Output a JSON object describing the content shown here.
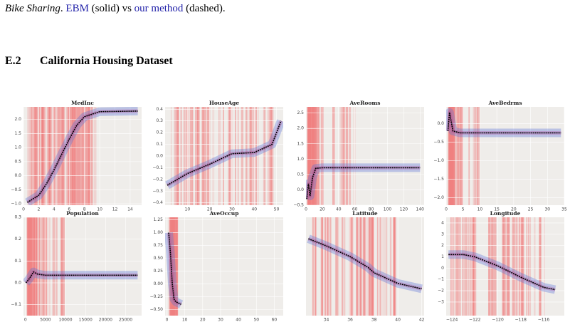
{
  "caption": {
    "dataset": "Bike Sharing",
    "sep": ".",
    "ebm": "EBM",
    "solid": "(solid) vs",
    "method": "our method",
    "dashed": "(dashed)."
  },
  "section": {
    "number": "E.2",
    "title": "California Housing Dataset"
  },
  "chart_data": [
    {
      "type": "line",
      "title": "MedInc",
      "xlim": [
        0,
        15.5
      ],
      "ylim": [
        -1.05,
        2.45
      ],
      "xticks": [
        0,
        2,
        4,
        6,
        8,
        10,
        12,
        14
      ],
      "yticks": [
        {
          "value": -1.0,
          "label": "−1.0"
        },
        {
          "value": -0.5,
          "label": "−0.5"
        },
        {
          "value": 0,
          "label": "0.0"
        },
        0.5,
        {
          "value": 1.0,
          "label": "1.0"
        },
        1.5,
        {
          "value": 2.0,
          "label": "2.0"
        }
      ],
      "x": [
        0.5,
        2,
        3,
        4,
        5,
        6,
        7,
        8,
        10,
        15
      ],
      "y": [
        -0.95,
        -0.7,
        -0.3,
        0.2,
        0.75,
        1.3,
        1.8,
        2.1,
        2.28,
        2.3
      ]
    },
    {
      "type": "line",
      "title": "HouseAge",
      "xlim": [
        0,
        53
      ],
      "ylim": [
        -0.42,
        0.42
      ],
      "xticks": [
        10,
        20,
        30,
        40,
        50
      ],
      "yticks": [
        {
          "value": -0.4,
          "label": "−0.4"
        },
        {
          "value": -0.3,
          "label": "−0.3"
        },
        {
          "value": -0.2,
          "label": "−0.2"
        },
        {
          "value": -0.1,
          "label": "−0.1"
        },
        {
          "value": 0,
          "label": "0.0"
        },
        0.1,
        0.2,
        0.3,
        0.4
      ],
      "x": [
        1,
        10,
        20,
        30,
        40,
        48,
        52
      ],
      "y": [
        -0.25,
        -0.15,
        -0.07,
        0.02,
        0.03,
        0.1,
        0.3
      ]
    },
    {
      "type": "line",
      "title": "AveRooms",
      "xlim": [
        0,
        145
      ],
      "ylim": [
        -0.5,
        2.7
      ],
      "xticks": [
        0,
        20,
        40,
        60,
        80,
        100,
        120,
        140
      ],
      "yticks": [
        {
          "value": -0.5,
          "label": "−0.5"
        },
        {
          "value": 0,
          "label": "0.0"
        },
        0.5,
        {
          "value": 1.0,
          "label": "1.0"
        },
        1.5,
        {
          "value": 2.0,
          "label": "2.0"
        },
        2.5
      ],
      "x": [
        1,
        3,
        5,
        8,
        12,
        20,
        60,
        140
      ],
      "y": [
        -0.3,
        0.2,
        -0.2,
        0.4,
        0.7,
        0.72,
        0.72,
        0.72
      ]
    },
    {
      "type": "line",
      "title": "AveBedrms",
      "xlim": [
        0,
        35
      ],
      "ylim": [
        -2.2,
        0.45
      ],
      "xticks": [
        0,
        5,
        10,
        15,
        20,
        25,
        30,
        35
      ],
      "yticks": [
        {
          "value": -2.0,
          "label": "−2.0"
        },
        {
          "value": -1.5,
          "label": "−1.5"
        },
        {
          "value": -1.0,
          "label": "−1.0"
        },
        {
          "value": -0.5,
          "label": "−0.5"
        },
        {
          "value": 0,
          "label": "0.0"
        }
      ],
      "x": [
        0.5,
        1,
        1.5,
        2,
        4,
        10,
        34
      ],
      "y": [
        -0.2,
        0.3,
        0.05,
        -0.2,
        -0.25,
        -0.25,
        -0.25
      ]
    },
    {
      "type": "line",
      "title": "Population",
      "xlim": [
        -500,
        29000
      ],
      "ylim": [
        -0.15,
        0.3
      ],
      "xticks": [
        0,
        5000,
        10000,
        15000,
        20000,
        25000
      ],
      "yticks": [
        {
          "value": -0.1,
          "label": "−0.1"
        },
        {
          "value": 0,
          "label": "0.0"
        },
        0.1,
        0.2,
        0.3
      ],
      "x": [
        100,
        1000,
        2000,
        3000,
        5000,
        10000,
        28000
      ],
      "y": [
        0,
        0.02,
        0.05,
        0.04,
        0.035,
        0.035,
        0.035
      ]
    },
    {
      "type": "line",
      "title": "AveOccup",
      "xlim": [
        -1,
        65
      ],
      "ylim": [
        -0.62,
        1.3
      ],
      "xticks": [
        0,
        10,
        20,
        30,
        40,
        50,
        60
      ],
      "yticks": [
        {
          "value": -0.5,
          "label": "−0.50"
        },
        {
          "value": -0.25,
          "label": "−0.25"
        },
        {
          "value": 0,
          "label": "0.00"
        },
        0.25,
        {
          "value": 0.5,
          "label": "0.50"
        },
        0.75,
        {
          "value": 1.0,
          "label": "1.00"
        },
        1.25
      ],
      "x": [
        1,
        2,
        3,
        4,
        5,
        8
      ],
      "y": [
        1.0,
        0.6,
        0.0,
        -0.3,
        -0.35,
        -0.4
      ]
    },
    {
      "type": "line",
      "title": "Latitude",
      "xlim": [
        32.3,
        42.2
      ],
      "ylim": [
        -3.3,
        2.2
      ],
      "xticks": [
        34,
        36,
        38,
        40,
        42
      ],
      "yticks": [],
      "x": [
        32.5,
        34,
        36,
        37.5,
        38,
        40,
        42
      ],
      "y": [
        1.0,
        0.6,
        0,
        -0.6,
        -0.9,
        -1.5,
        -1.8
      ]
    },
    {
      "type": "line",
      "title": "Longitude",
      "xlim": [
        -124.5,
        -114.2
      ],
      "ylim": [
        -4.2,
        4.5
      ],
      "xticks": [
        {
          "value": -124,
          "label": "−124"
        },
        {
          "value": -122,
          "label": "−122"
        },
        {
          "value": -120,
          "label": "−120"
        },
        {
          "value": -118,
          "label": "−118"
        },
        {
          "value": -116,
          "label": "−116"
        }
      ],
      "yticks": [
        {
          "value": -3,
          "label": "−3"
        },
        {
          "value": -2,
          "label": "−2"
        },
        {
          "value": -1,
          "label": "−1"
        },
        0,
        1,
        2,
        3,
        4
      ],
      "x": [
        -124.3,
        -123,
        -122,
        -120,
        -119,
        -118,
        -116,
        -115
      ],
      "y": [
        1.2,
        1.2,
        1.0,
        0.2,
        -0.3,
        -0.8,
        -1.7,
        -1.9
      ]
    }
  ]
}
